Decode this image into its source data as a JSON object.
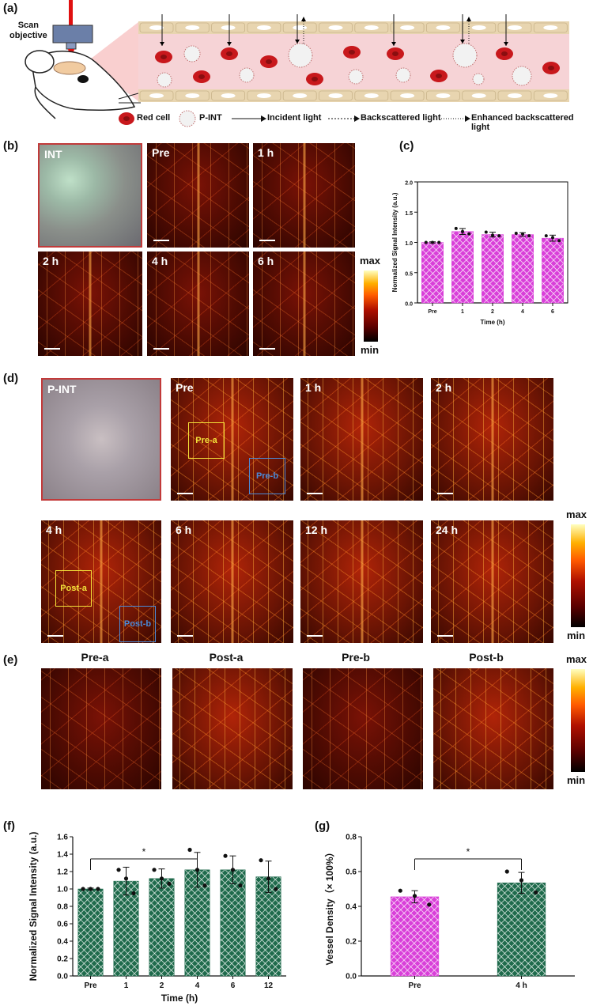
{
  "panel_labels": {
    "a": "(a)",
    "b": "(b)",
    "c": "(c)",
    "d": "(d)",
    "e": "(e)",
    "f": "(f)",
    "g": "(g)"
  },
  "schematic": {
    "objective_label_line1": "Scan",
    "objective_label_line2": "objective",
    "legend": {
      "red_cell": "Red cell",
      "pint": "P-INT",
      "incident": "Incident light",
      "backscattered": "Backscattered light",
      "enhanced": "Enhanced backscattered light"
    },
    "colors": {
      "vessel": "#f6d3d6",
      "wall": "#e8d5b0",
      "rbc": "#c8181c"
    }
  },
  "panel_b": {
    "photo_label": "INT",
    "images": [
      "Pre",
      "1 h",
      "2 h",
      "4 h",
      "6 h"
    ],
    "colorbar": {
      "max": "max",
      "min": "min"
    }
  },
  "panel_d": {
    "photo_label": "P-INT",
    "images": [
      "Pre",
      "1 h",
      "2 h",
      "4 h",
      "6 h",
      "12 h",
      "24 h"
    ],
    "roi": {
      "pre_a": "Pre-a",
      "pre_b": "Pre-b",
      "post_a": "Post-a",
      "post_b": "Post-b"
    },
    "colorbar": {
      "max": "max",
      "min": "min"
    }
  },
  "panel_e": {
    "titles": [
      "Pre-a",
      "Post-a",
      "Pre-b",
      "Post-b"
    ],
    "colorbar": {
      "max": "max",
      "min": "min"
    }
  },
  "chart_data": [
    {
      "id": "c",
      "type": "bar",
      "categories": [
        "Pre",
        "1",
        "2",
        "4",
        "6"
      ],
      "values": [
        1.0,
        1.18,
        1.13,
        1.13,
        1.07
      ],
      "errors": [
        0.01,
        0.05,
        0.04,
        0.03,
        0.05
      ],
      "points": [
        [
          1.0,
          1.0,
          1.0
        ],
        [
          1.23,
          1.18,
          1.14
        ],
        [
          1.17,
          1.12,
          1.11
        ],
        [
          1.15,
          1.14,
          1.11
        ],
        [
          1.11,
          1.08,
          1.03
        ]
      ],
      "xlabel": "Time (h)",
      "ylabel": "Normalized Signal Intensity (a.u.)",
      "ylim": [
        0,
        2.0
      ],
      "yticks": [
        "0.0",
        "0.5",
        "1.0",
        "1.5",
        "2.0"
      ],
      "bar_color": "#d93fd9"
    },
    {
      "id": "f",
      "type": "bar",
      "categories": [
        "Pre",
        "1",
        "2",
        "4",
        "6",
        "12"
      ],
      "values": [
        1.0,
        1.09,
        1.12,
        1.22,
        1.22,
        1.14
      ],
      "errors": [
        0.01,
        0.16,
        0.11,
        0.2,
        0.16,
        0.18
      ],
      "points": [
        [
          1.0,
          1.0,
          1.0
        ],
        [
          1.22,
          1.12,
          0.95
        ],
        [
          1.22,
          1.12,
          1.06
        ],
        [
          1.45,
          1.22,
          1.04
        ],
        [
          1.38,
          1.22,
          1.04
        ],
        [
          1.33,
          1.12,
          1.0
        ]
      ],
      "xlabel": "Time (h)",
      "ylabel": "Normalized Signal Intensity (a.u.)",
      "ylim": [
        0,
        1.6
      ],
      "yticks": [
        "0.0",
        "0.2",
        "0.4",
        "0.6",
        "0.8",
        "1.0",
        "1.2",
        "1.4",
        "1.6"
      ],
      "significance": {
        "from": "Pre",
        "to": "4",
        "label": "*"
      },
      "bar_color": "#1f6b4c"
    },
    {
      "id": "g",
      "type": "bar",
      "categories": [
        "Pre",
        "4 h"
      ],
      "values": [
        0.455,
        0.535
      ],
      "errors": [
        0.035,
        0.06
      ],
      "points": [
        [
          0.49,
          0.46,
          0.41
        ],
        [
          0.6,
          0.55,
          0.48
        ]
      ],
      "xlabel": "",
      "ylabel": "Vessel Density（× 100%）",
      "ylim": [
        0,
        0.8
      ],
      "yticks": [
        "0.0",
        "0.2",
        "0.4",
        "0.6",
        "0.8"
      ],
      "significance": {
        "from": "Pre",
        "to": "4 h",
        "label": "*"
      },
      "bar_colors": [
        "#d93fd9",
        "#1f6b4c"
      ]
    }
  ]
}
